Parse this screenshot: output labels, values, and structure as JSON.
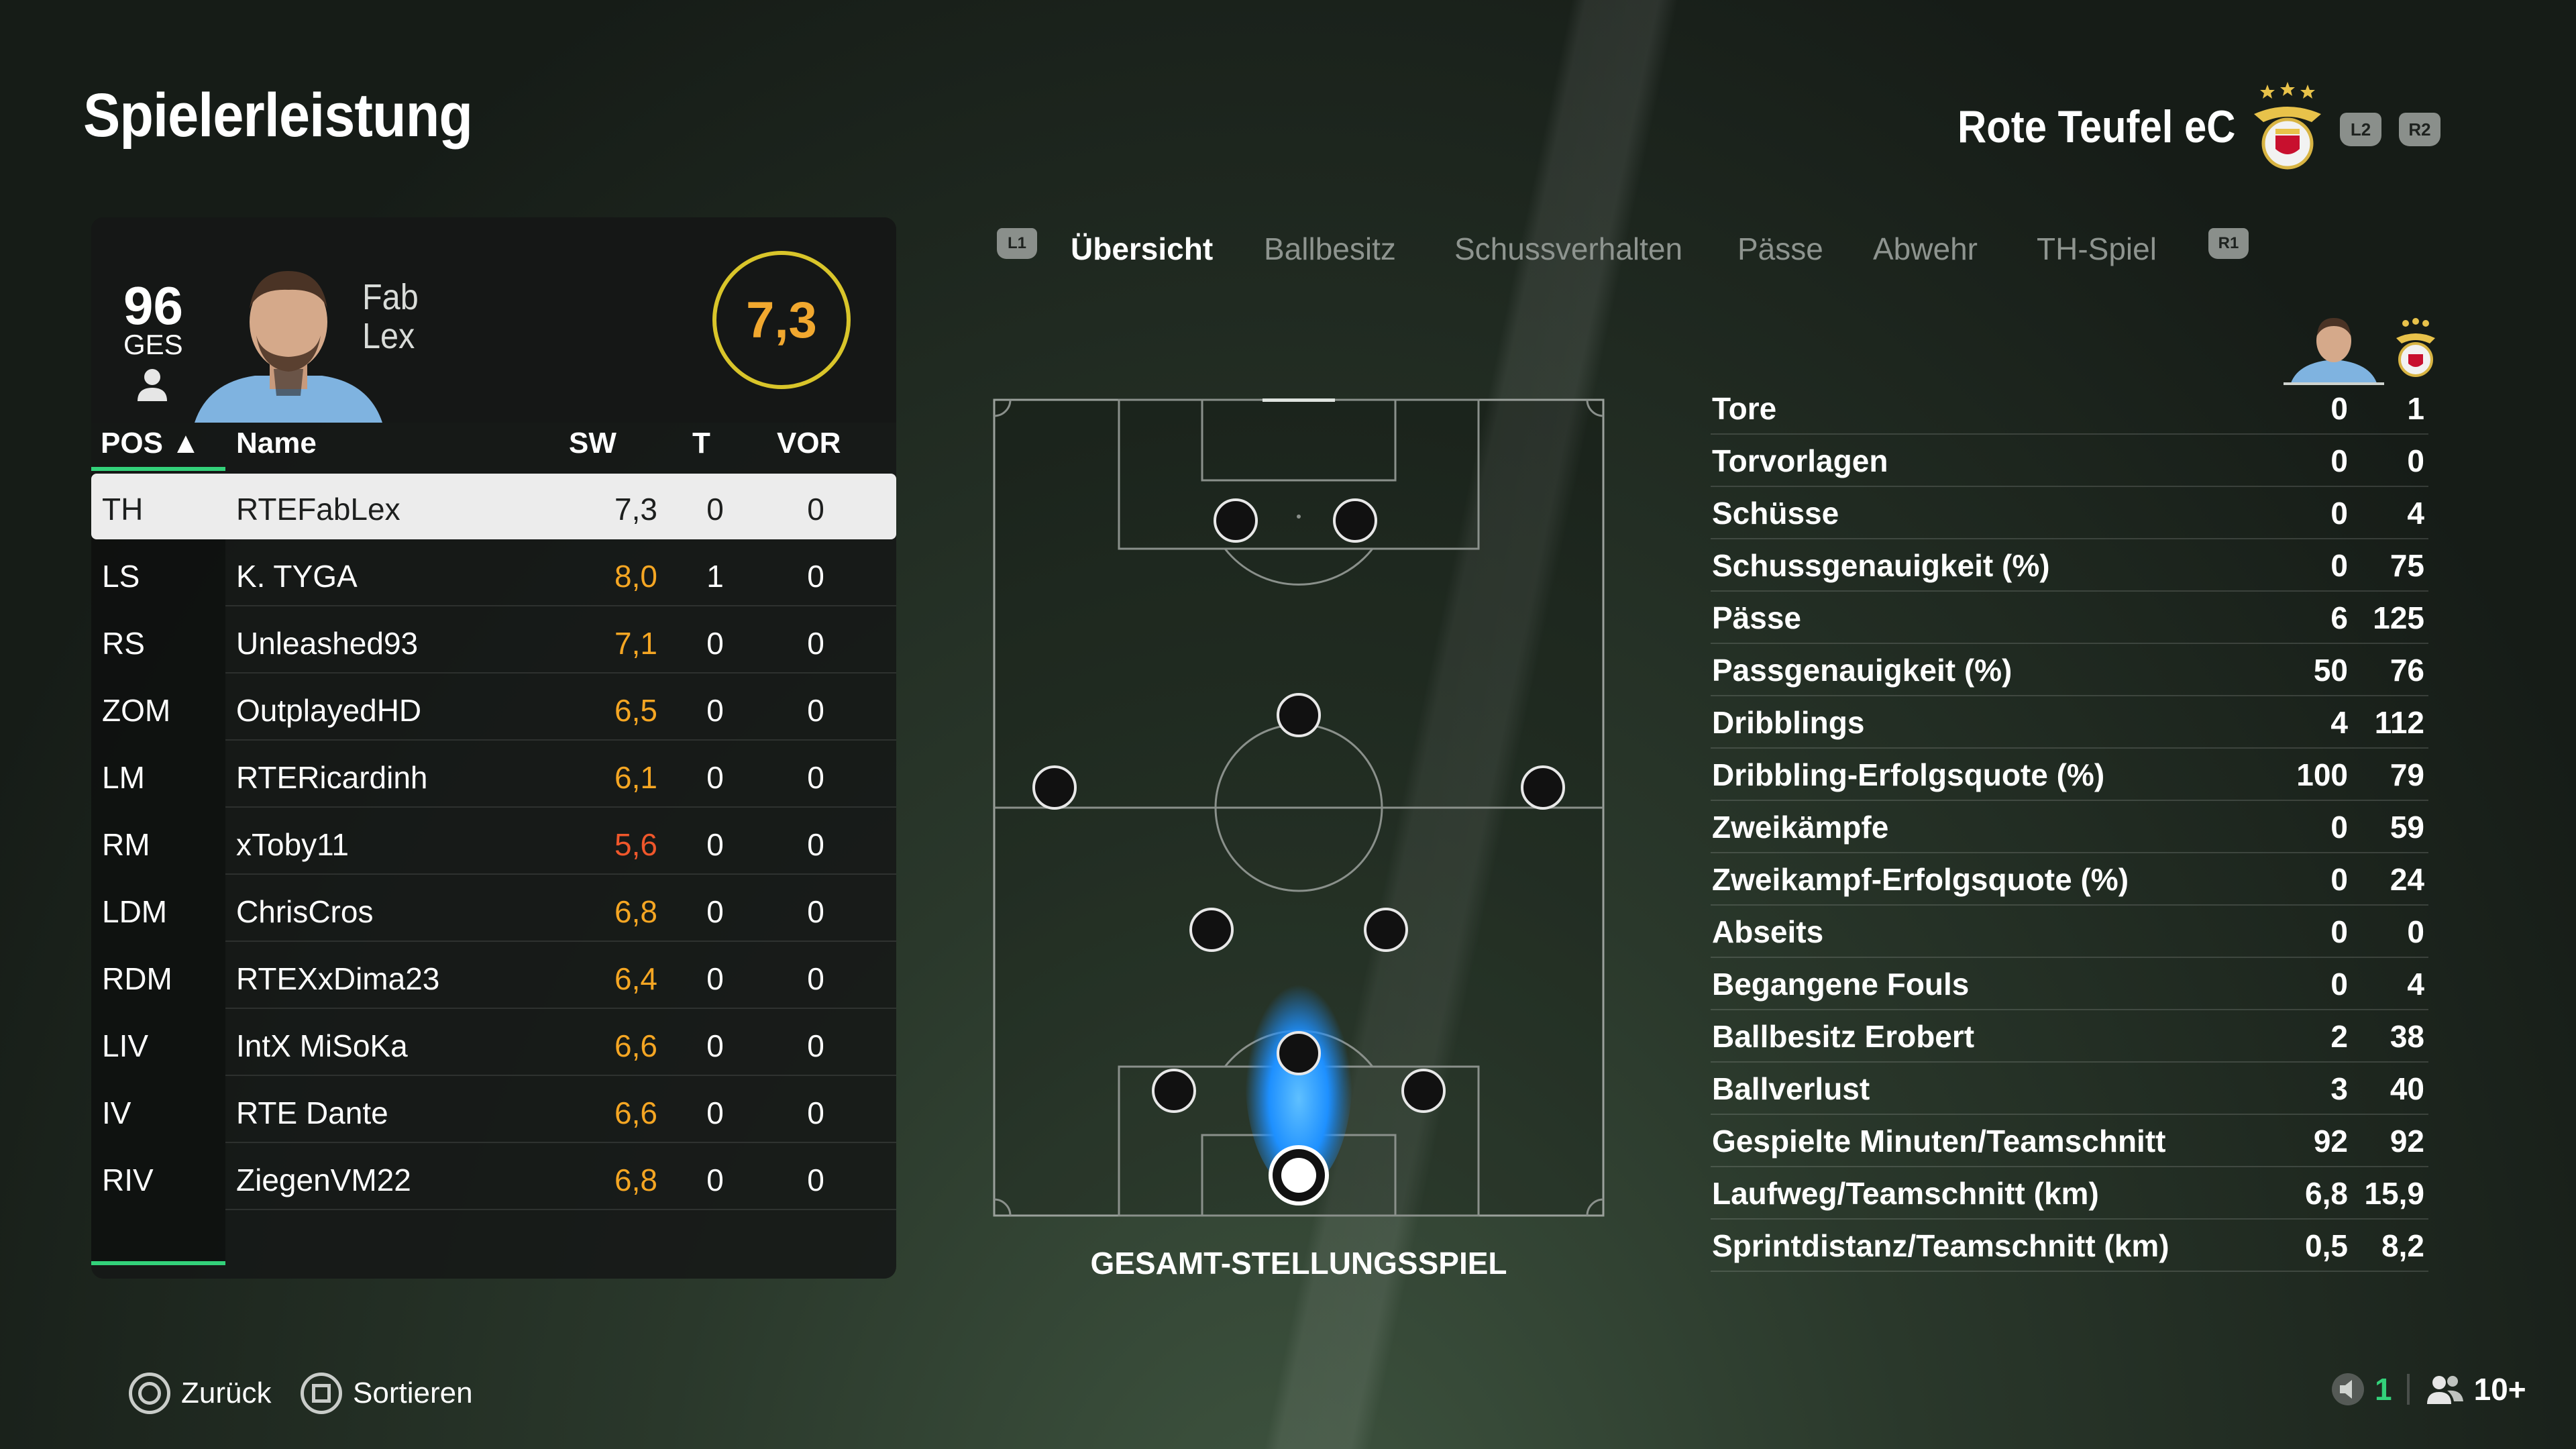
{
  "header": {
    "title": "Spielerleistung",
    "team_name": "Rote Teufel eC",
    "l2": "L2",
    "r2": "R2"
  },
  "player_card": {
    "overall": "96",
    "overall_label": "GES",
    "first_name": "Fab",
    "last_name": "Lex",
    "rating": "7,3"
  },
  "table": {
    "headers": {
      "pos": "POS ▲",
      "name": "Name",
      "sw": "SW",
      "t": "T",
      "vor": "VOR"
    },
    "rows": [
      {
        "pos": "TH",
        "name": "RTEFabLex",
        "sw": "7,3",
        "t": "0",
        "vor": "0"
      },
      {
        "pos": "LS",
        "name": "K. TYGA",
        "sw": "8,0",
        "t": "1",
        "vor": "0"
      },
      {
        "pos": "RS",
        "name": "Unleashed93",
        "sw": "7,1",
        "t": "0",
        "vor": "0"
      },
      {
        "pos": "ZOM",
        "name": "OutplayedHD",
        "sw": "6,5",
        "t": "0",
        "vor": "0"
      },
      {
        "pos": "LM",
        "name": "RTERicardinh",
        "sw": "6,1",
        "t": "0",
        "vor": "0"
      },
      {
        "pos": "RM",
        "name": "xToby11",
        "sw": "5,6",
        "t": "0",
        "vor": "0"
      },
      {
        "pos": "LDM",
        "name": "ChrisCros",
        "sw": "6,8",
        "t": "0",
        "vor": "0"
      },
      {
        "pos": "RDM",
        "name": "RTEXxDima23",
        "sw": "6,4",
        "t": "0",
        "vor": "0"
      },
      {
        "pos": "LIV",
        "name": "IntX MiSoKa",
        "sw": "6,6",
        "t": "0",
        "vor": "0"
      },
      {
        "pos": "IV",
        "name": "RTE Dante",
        "sw": "6,6",
        "t": "0",
        "vor": "0"
      },
      {
        "pos": "RIV",
        "name": "ZiegenVM22",
        "sw": "6,8",
        "t": "0",
        "vor": "0"
      }
    ]
  },
  "tabs": {
    "l1": "L1",
    "r1": "R1",
    "items": [
      "Übersicht",
      "Ballbesitz",
      "Schussverhalten",
      "Pässe",
      "Abwehr",
      "TH-Spiel"
    ]
  },
  "pitch": {
    "caption": "GESAMT-STELLUNGSSPIEL"
  },
  "stats": [
    {
      "label": "Tore",
      "player": "0",
      "team": "1"
    },
    {
      "label": "Torvorlagen",
      "player": "0",
      "team": "0"
    },
    {
      "label": "Schüsse",
      "player": "0",
      "team": "4"
    },
    {
      "label": "Schussgenauigkeit (%)",
      "player": "0",
      "team": "75"
    },
    {
      "label": "Pässe",
      "player": "6",
      "team": "125"
    },
    {
      "label": "Passgenauigkeit (%)",
      "player": "50",
      "team": "76"
    },
    {
      "label": "Dribblings",
      "player": "4",
      "team": "112"
    },
    {
      "label": "Dribbling-Erfolgsquote (%)",
      "player": "100",
      "team": "79"
    },
    {
      "label": "Zweikämpfe",
      "player": "0",
      "team": "59"
    },
    {
      "label": "Zweikampf-Erfolgsquote (%)",
      "player": "0",
      "team": "24"
    },
    {
      "label": "Abseits",
      "player": "0",
      "team": "0"
    },
    {
      "label": "Begangene Fouls",
      "player": "0",
      "team": "4"
    },
    {
      "label": "Ballbesitz Erobert",
      "player": "2",
      "team": "38"
    },
    {
      "label": "Ballverlust",
      "player": "3",
      "team": "40"
    },
    {
      "label": "Gespielte Minuten/Teamschnitt",
      "player": "92",
      "team": "92"
    },
    {
      "label": "Laufweg/Teamschnitt (km)",
      "player": "6,8",
      "team": "15,9"
    },
    {
      "label": "Sprintdistanz/Teamschnitt (km)",
      "player": "0,5",
      "team": "8,2"
    }
  ],
  "footer": {
    "back": "Zurück",
    "sort": "Sortieren",
    "voice_count": "1",
    "party_count": "10+"
  },
  "colors": {
    "accent_green": "#33d17a",
    "rating_orange": "#f5a623",
    "rating_red": "#f0572b",
    "heat_blue": "#1e90ff"
  }
}
